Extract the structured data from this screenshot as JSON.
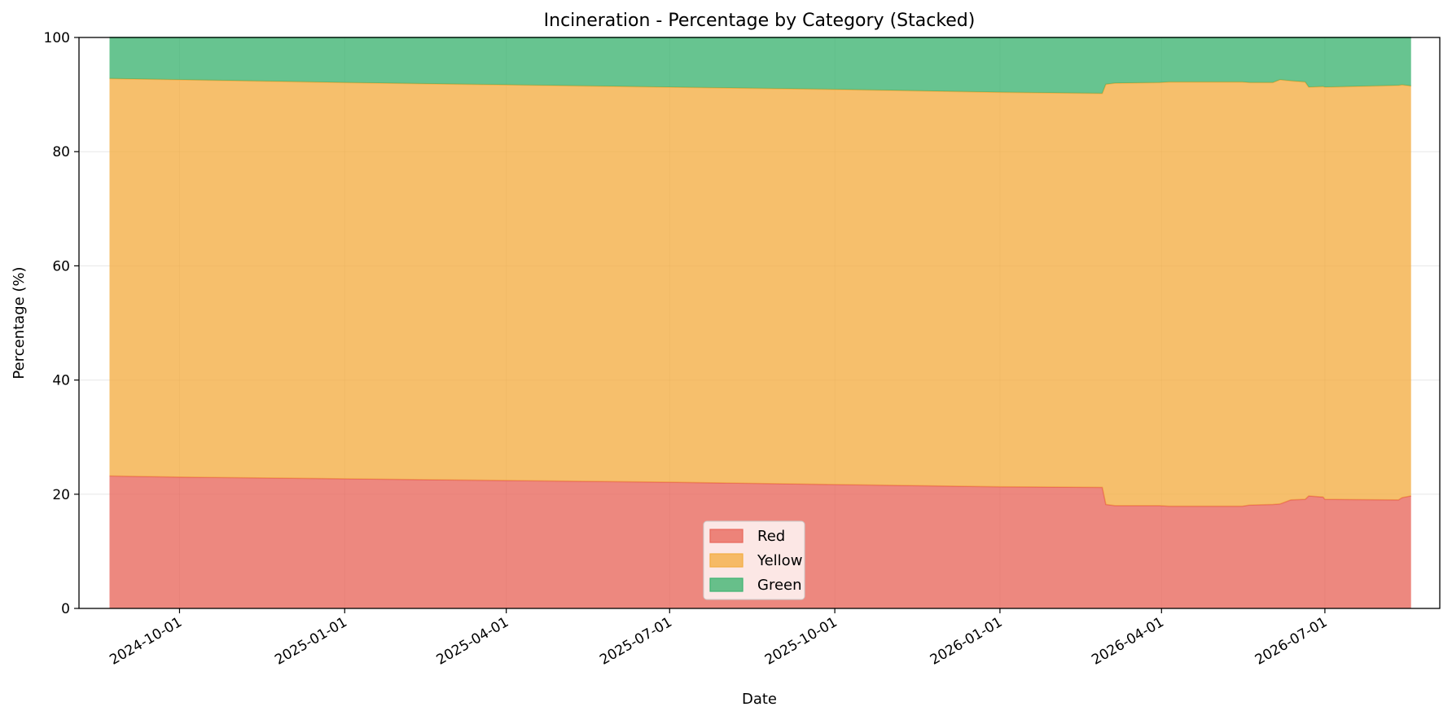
{
  "chart_data": {
    "type": "area",
    "stacked": true,
    "title": "Incineration - Percentage by Category (Stacked)",
    "xlabel": "Date",
    "ylabel": "Percentage (%)",
    "ylim": [
      0,
      100
    ],
    "xlim": [
      "2024-08-06",
      "2026-09-03"
    ],
    "yticks": [
      0,
      20,
      40,
      60,
      80,
      100
    ],
    "xticks": [
      "2024-10-01",
      "2025-01-01",
      "2025-04-01",
      "2025-07-01",
      "2025-10-01",
      "2026-01-01",
      "2026-04-01",
      "2026-07-01"
    ],
    "grid": true,
    "legend_position": "lower center",
    "x": [
      "2024-08-23",
      "2024-10-01",
      "2025-01-01",
      "2025-04-01",
      "2025-07-01",
      "2025-10-01",
      "2026-01-01",
      "2026-02-27",
      "2026-03-01",
      "2026-03-06",
      "2026-03-31",
      "2026-04-05",
      "2026-05-16",
      "2026-05-20",
      "2026-06-02",
      "2026-06-06",
      "2026-06-12",
      "2026-06-20",
      "2026-06-22",
      "2026-06-30",
      "2026-07-01",
      "2026-08-11",
      "2026-08-13",
      "2026-08-18"
    ],
    "series": [
      {
        "name": "Red",
        "color": "#e8675b",
        "values": [
          23.2,
          23.0,
          22.7,
          22.4,
          22.1,
          21.7,
          21.3,
          21.2,
          18.2,
          18.0,
          18.0,
          17.9,
          17.9,
          18.1,
          18.2,
          18.3,
          19.0,
          19.1,
          19.7,
          19.5,
          19.1,
          19.0,
          19.4,
          19.7
        ]
      },
      {
        "name": "Yellow",
        "color": "#f3ad42",
        "values": [
          69.6,
          69.6,
          69.4,
          69.3,
          69.2,
          69.2,
          69.1,
          69.0,
          73.6,
          74.0,
          74.1,
          74.3,
          74.3,
          74.0,
          73.9,
          74.3,
          73.4,
          73.1,
          71.6,
          71.9,
          72.2,
          72.6,
          72.3,
          71.8
        ]
      },
      {
        "name": "Green",
        "color": "#3cb371",
        "values": [
          7.2,
          7.4,
          7.9,
          8.3,
          8.7,
          9.1,
          9.6,
          9.8,
          8.2,
          8.0,
          7.9,
          7.8,
          7.8,
          7.9,
          7.9,
          7.4,
          7.6,
          7.8,
          8.7,
          8.6,
          8.7,
          8.4,
          8.3,
          8.5
        ]
      }
    ]
  }
}
